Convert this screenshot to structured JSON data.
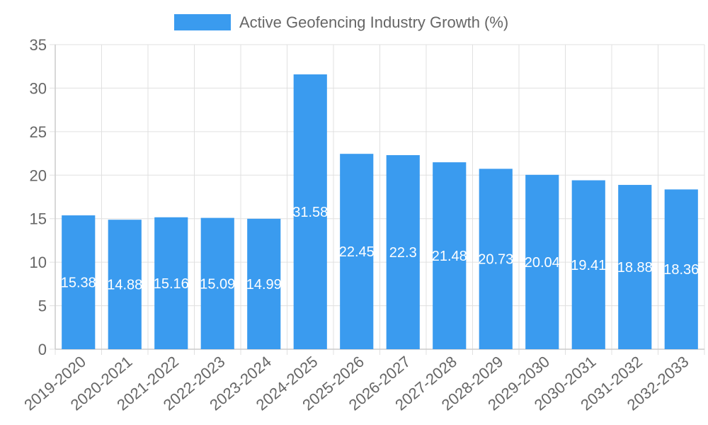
{
  "chart_data": {
    "type": "bar",
    "categories": [
      "2019-2020",
      "2020-2021",
      "2021-2022",
      "2022-2023",
      "2023-2024",
      "2024-2025",
      "2025-2026",
      "2026-2027",
      "2027-2028",
      "2028-2029",
      "2029-2030",
      "2030-2031",
      "2031-2032",
      "2032-2033"
    ],
    "series": [
      {
        "name": "Active Geofencing Industry Growth (%)",
        "values": [
          15.38,
          14.88,
          15.16,
          15.09,
          14.99,
          31.58,
          22.45,
          22.3,
          21.48,
          20.73,
          20.04,
          19.41,
          18.88,
          18.36
        ],
        "labels": [
          "15.38",
          "14.88",
          "15.16",
          "15.09",
          "14.99",
          "31.58",
          "22.45",
          "22.3",
          "21.48",
          "20.73",
          "20.04",
          "19.41",
          "18.88",
          "18.36"
        ]
      }
    ],
    "ylim": [
      0,
      35
    ],
    "yticks": [
      "0",
      "5",
      "10",
      "15",
      "20",
      "25",
      "30",
      "35"
    ],
    "grid": true,
    "legend": "top-center",
    "bar_color": "#3a9bef",
    "grid_color": "#e0e0e0",
    "axis_color": "#cccccc"
  }
}
